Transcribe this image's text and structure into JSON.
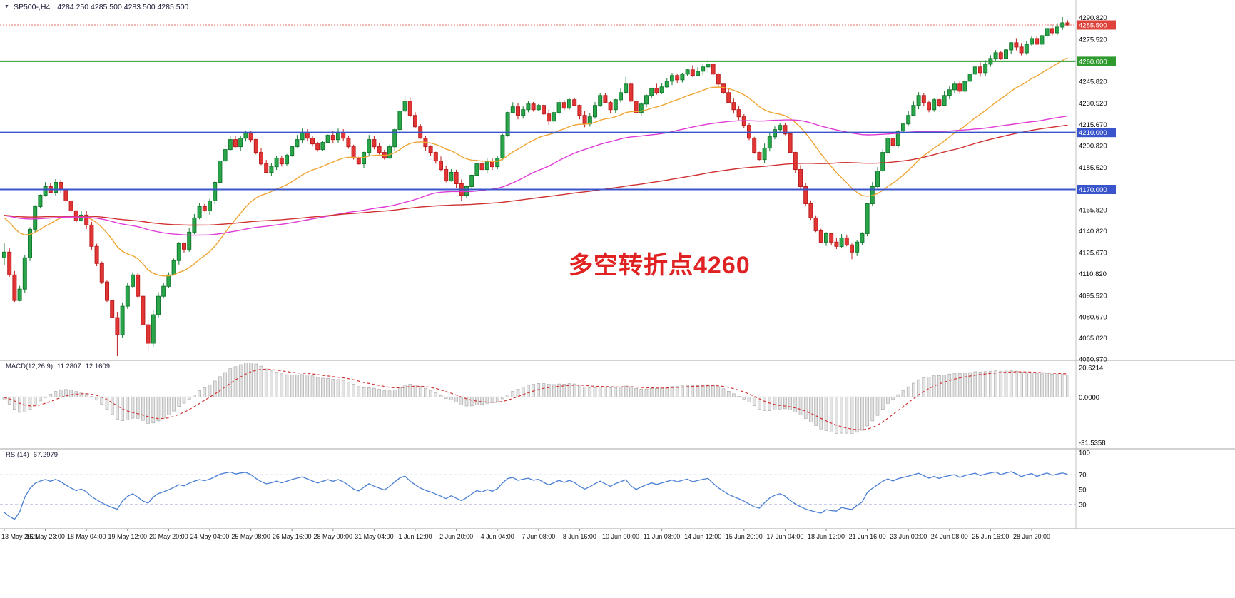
{
  "header": {
    "symbol_period": "SP500-,H4",
    "ohlc_values": "4284.250 4285.500 4283.500 4285.500",
    "dropdown_icon": "triangle-down"
  },
  "colors": {
    "background": "#ffffff",
    "candle_up_fill": "#2aa64a",
    "candle_up_stroke": "#157a30",
    "candle_down_fill": "#e23535",
    "candle_down_stroke": "#bb1f1f",
    "level_green": "#2f9b2f",
    "level_blue": "#3a55cb",
    "price_badge": "#df423a",
    "bid_line": "#e0706a",
    "macd_hist_fill": "#e3e3e3",
    "macd_hist_stroke": "#a2a2a2",
    "macd_signal": "#d23333",
    "rsi_line": "#4a7fd4",
    "rsi_level": "#b9bedd",
    "separator": "#a6a6a6",
    "axis_text": "#000000",
    "annotation": "#e02222"
  },
  "chart_data": {
    "type": "candlestick",
    "symbol": "SP500-",
    "timeframe": "H4",
    "bars_per_tick": 8,
    "x_tick_labels": [
      "13 May 2021",
      "16 May 23:00",
      "18 May 04:00",
      "19 May 12:00",
      "20 May 20:00",
      "24 May 04:00",
      "25 May 08:00",
      "26 May 16:00",
      "28 May 00:00",
      "31 May 04:00",
      "1 Jun 12:00",
      "2 Jun 20:00",
      "4 Jun 04:00",
      "7 Jun 08:00",
      "8 Jun 16:00",
      "10 Jun 00:00",
      "11 Jun 08:00",
      "14 Jun 12:00",
      "15 Jun 20:00",
      "17 Jun 04:00",
      "18 Jun 12:00",
      "21 Jun 16:00",
      "23 Jun 00:00",
      "24 Jun 08:00",
      "25 Jun 16:00",
      "28 Jun 20:00"
    ],
    "series": {
      "name": "SP500- H4 candles",
      "first_open": 4122,
      "seed_value": 4152,
      "closes": [
        4126,
        4110,
        4092,
        4100,
        4122,
        4142,
        4158,
        4166,
        4172,
        4168,
        4175,
        4170,
        4162,
        4155,
        4148,
        4152,
        4145,
        4130,
        4118,
        4105,
        4092,
        4080,
        4068,
        4088,
        4102,
        4110,
        4095,
        4075,
        4062,
        4082,
        4095,
        4102,
        4110,
        4120,
        4132,
        4128,
        4140,
        4150,
        4158,
        4155,
        4162,
        4175,
        4190,
        4198,
        4205,
        4200,
        4206,
        4210,
        4205,
        4196,
        4188,
        4182,
        4186,
        4192,
        4188,
        4194,
        4200,
        4205,
        4210,
        4206,
        4202,
        4198,
        4203,
        4208,
        4205,
        4210,
        4206,
        4200,
        4192,
        4188,
        4196,
        4205,
        4200,
        4196,
        4192,
        4200,
        4212,
        4225,
        4232,
        4222,
        4214,
        4206,
        4200,
        4196,
        4190,
        4184,
        4176,
        4182,
        4174,
        4166,
        4172,
        4180,
        4188,
        4184,
        4190,
        4186,
        4192,
        4208,
        4224,
        4228,
        4222,
        4226,
        4230,
        4226,
        4229,
        4223,
        4218,
        4224,
        4231,
        4227,
        4233,
        4229,
        4222,
        4216,
        4221,
        4229,
        4236,
        4231,
        4226,
        4233,
        4238,
        4244,
        4232,
        4224,
        4230,
        4236,
        4241,
        4238,
        4242,
        4246,
        4250,
        4247,
        4251,
        4254,
        4250,
        4253,
        4256,
        4258,
        4251,
        4244,
        4238,
        4231,
        4226,
        4221,
        4215,
        4206,
        4196,
        4191,
        4199,
        4207,
        4212,
        4215,
        4209,
        4196,
        4184,
        4172,
        4160,
        4150,
        4141,
        4133,
        4139,
        4133,
        4130,
        4136,
        4131,
        4126,
        4133,
        4139,
        4160,
        4172,
        4183,
        4196,
        4206,
        4201,
        4211,
        4216,
        4222,
        4229,
        4236,
        4231,
        4226,
        4233,
        4229,
        4236,
        4240,
        4244,
        4239,
        4246,
        4251,
        4256,
        4252,
        4258,
        4262,
        4266,
        4262,
        4268,
        4273,
        4270,
        4266,
        4272,
        4276,
        4272,
        4278,
        4283,
        4280,
        4284,
        4287,
        4285.5
      ],
      "wick_overrides": {
        "0": [
          4132,
          4117
        ],
        "22": [
          4084,
          4053
        ],
        "28": [
          4078,
          4057
        ],
        "78": [
          4236,
          4223
        ],
        "89": [
          4177,
          4162
        ],
        "121": [
          4249,
          4237
        ],
        "137": [
          4262,
          4252
        ],
        "165": [
          4132,
          4121
        ],
        "206": [
          4291,
          4282
        ]
      }
    },
    "moving_averages": [
      {
        "name": "fast-ma",
        "type": "ema",
        "period": 25,
        "color": "#f0a433"
      },
      {
        "name": "medium-ma",
        "type": "sma",
        "period": 80,
        "color": "#df3bd4"
      },
      {
        "name": "slow-ma",
        "type": "sma",
        "period": 160,
        "color": "#d03030"
      }
    ],
    "levels": [
      {
        "value": 4260,
        "label": "4260.000",
        "color": "#2f9b2f"
      },
      {
        "value": 4210,
        "label": "4210.000",
        "color": "#3a55cb"
      },
      {
        "value": 4170,
        "label": "4170.000",
        "color": "#3a55cb"
      }
    ],
    "current_price": {
      "value": 4285.5,
      "label": "4285.500",
      "color": "#df423a"
    },
    "price_axis_labels": [
      {
        "v": 4290.82,
        "t": "4290.820"
      },
      {
        "v": 4275.52,
        "t": "4275.520"
      },
      {
        "v": 4245.82,
        "t": "4245.820"
      },
      {
        "v": 4230.52,
        "t": "4230.520"
      },
      {
        "v": 4215.67,
        "t": "4215.670"
      },
      {
        "v": 4200.82,
        "t": "4200.820"
      },
      {
        "v": 4185.52,
        "t": "4185.520"
      },
      {
        "v": 4155.82,
        "t": "4155.820"
      },
      {
        "v": 4140.82,
        "t": "4140.820"
      },
      {
        "v": 4125.67,
        "t": "4125.670"
      },
      {
        "v": 4110.82,
        "t": "4110.820"
      },
      {
        "v": 4095.52,
        "t": "4095.520"
      },
      {
        "v": 4080.67,
        "t": "4080.670"
      },
      {
        "v": 4065.82,
        "t": "4065.820"
      },
      {
        "v": 4050.97,
        "t": "4050.970"
      }
    ],
    "annotation": {
      "text": "多空转折点4260",
      "color": "#e02222"
    },
    "macd": {
      "label": "MACD(12,26,9)",
      "value_main": "11.2807",
      "value_signal": "12.1609",
      "fast": 12,
      "slow": 26,
      "signal": 9,
      "axis_labels": [
        {
          "v": 20.6214,
          "t": "20.6214"
        },
        {
          "v": 0,
          "t": "0.0000"
        },
        {
          "v": -31.5358,
          "t": "-31.5358"
        }
      ]
    },
    "rsi": {
      "label": "RSI(14)",
      "value": "67.2979",
      "period": 14,
      "levels": [
        70,
        30
      ],
      "axis_labels": [
        {
          "v": 100,
          "t": "100"
        },
        {
          "v": 70,
          "t": "70"
        },
        {
          "v": 50,
          "t": "50"
        },
        {
          "v": 30,
          "t": "30"
        }
      ]
    }
  }
}
